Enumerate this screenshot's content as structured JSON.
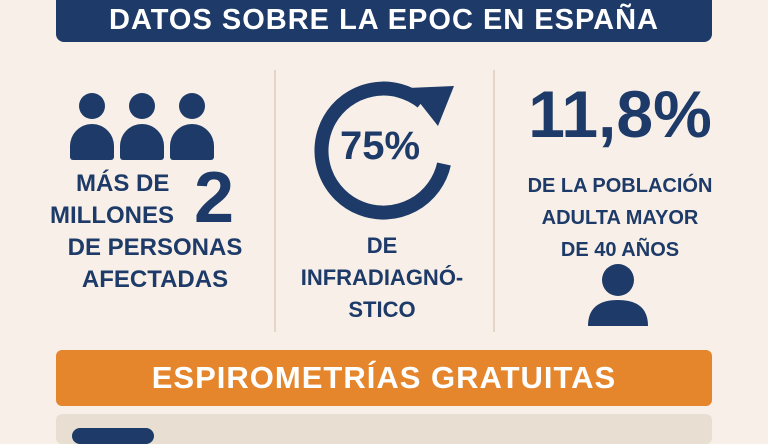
{
  "header": {
    "title": "DATOS SOBRE LA EPOC EN ESPAÑA"
  },
  "stat_affected": {
    "line1": "MÁS DE",
    "line2": "MILLONES",
    "number": "2",
    "line3": "DE PERSONAS",
    "line4": "AFECTADAS",
    "icon": "people-icon"
  },
  "stat_underdiagnosis": {
    "value": "75%",
    "line1": "DE",
    "line2": "INFRADIAGNÓ-",
    "line3": "STICO",
    "icon": "circular-arrow-icon",
    "ring_fraction": 0.75
  },
  "stat_population": {
    "value": "11,8%",
    "line1": "DE LA POBLACIÓN",
    "line2": "ADULTA MAYOR",
    "line3": "DE 40 AÑOS",
    "icon": "user-icon"
  },
  "cta": {
    "label": "ESPIROMETRÍAS GRATUITAS"
  },
  "colors": {
    "navy": "#1d3a68",
    "orange": "#e5862d",
    "background": "#f8f0e8"
  }
}
